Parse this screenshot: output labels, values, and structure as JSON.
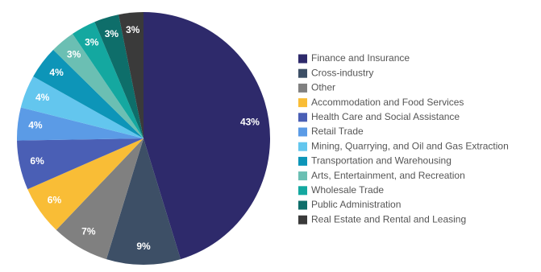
{
  "chart_data": {
    "type": "pie",
    "categories": [
      "Finance and Insurance",
      "Cross-industry",
      "Other",
      "Accommodation and Food Services",
      "Health Care and Social Assistance",
      "Retail Trade",
      "Mining, Quarrying, and Oil and Gas Extraction",
      "Transportation and Warehousing",
      "Arts, Entertainment, and Recreation",
      "Wholesale Trade",
      "Public Administration",
      "Real Estate and Rental and Leasing"
    ],
    "values": [
      43,
      9,
      7,
      6,
      6,
      4,
      4,
      4,
      3,
      3,
      3,
      3
    ],
    "value_labels": [
      "43%",
      "9%",
      "7%",
      "6%",
      "6%",
      "4%",
      "4%",
      "4%",
      "3%",
      "3%",
      "3%",
      "3%"
    ],
    "colors": [
      "#2e2a6b",
      "#3d4f66",
      "#808080",
      "#f9bd36",
      "#4a5fb5",
      "#5b9be6",
      "#63c6ee",
      "#0d95b8",
      "#6bbfb3",
      "#14a8a0",
      "#0e6e6a",
      "#3a3a3a"
    ],
    "legend": "right"
  }
}
